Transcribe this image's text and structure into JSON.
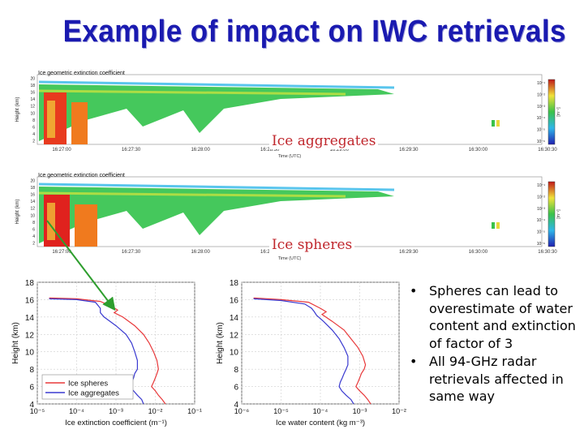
{
  "slide": {
    "title": "Example of impact on IWC retrievals",
    "bullets": [
      "Spheres can lead to overestimate of water content and extinction of factor of 3",
      "All 94-GHz radar retrievals affected in same way"
    ],
    "bullet_glyph": "•"
  },
  "panels": [
    {
      "caption": "Ice geometric extinction coefficient",
      "label": "Ice aggregates",
      "ylabel": "Height (km)",
      "xlabel": "Time (UTC)",
      "time_ticks": [
        "16:27:00",
        "16:27:30",
        "16:28:00",
        "16:28:30",
        "16:29:00",
        "16:29:30",
        "16:30:00",
        "16:30:30"
      ],
      "height_ticks": [
        "2",
        "4",
        "6",
        "8",
        "10",
        "12",
        "14",
        "16",
        "18",
        "20"
      ],
      "colorbar_ticks": [
        "10⁻¹",
        "10⁻²",
        "10⁻³",
        "10⁻⁴",
        "10⁻⁵",
        "10⁻⁶"
      ],
      "colorbar_unit": "[m⁻¹]"
    },
    {
      "caption": "Ice geometric extinction coefficient",
      "label": "Ice spheres",
      "ylabel": "Height (km)",
      "xlabel": "Time (UTC)",
      "time_ticks": [
        "16:27:00",
        "16:27:30",
        "16:28:00",
        "16:28:30",
        "16:29:00",
        "16:29:30",
        "16:30:00",
        "16:30:30"
      ],
      "height_ticks": [
        "2",
        "4",
        "6",
        "8",
        "10",
        "12",
        "14",
        "16",
        "18",
        "20"
      ],
      "colorbar_ticks": [
        "10⁻¹",
        "10⁻²",
        "10⁻³",
        "10⁻⁴",
        "10⁻⁵",
        "10⁻⁶"
      ],
      "colorbar_unit": "[m⁻¹]"
    }
  ],
  "colors": {
    "title": "#1a1ab0",
    "label": "#c0272d",
    "spheres": "#e8383a",
    "aggregates": "#3a3ad0",
    "arrow": "#2e9e2e"
  },
  "chart_data": [
    {
      "type": "line",
      "xscale": "log",
      "xlabel": "Ice extinction coefficient (m⁻¹)",
      "ylabel": "Height (km)",
      "xlim": [
        1e-05,
        0.1
      ],
      "ylim": [
        4,
        18
      ],
      "xticks": [
        1e-05,
        0.0001,
        0.001,
        0.01,
        0.1
      ],
      "xtick_labels": [
        "10⁻⁵",
        "10⁻⁴",
        "10⁻³",
        "10⁻²",
        "10⁻¹"
      ],
      "yticks": [
        4,
        6,
        8,
        10,
        12,
        14,
        16,
        18
      ],
      "grid": true,
      "legend": "bottom-left",
      "series": [
        {
          "name": "Ice spheres",
          "color": "#e8383a",
          "points": [
            [
              2e-05,
              16.2
            ],
            [
              0.0001,
              16.1
            ],
            [
              0.0004,
              15.8
            ],
            [
              0.0008,
              15.2
            ],
            [
              0.0011,
              14.8
            ],
            [
              0.0009,
              14.5
            ],
            [
              0.0015,
              14.0
            ],
            [
              0.003,
              13.0
            ],
            [
              0.005,
              12.0
            ],
            [
              0.007,
              11.0
            ],
            [
              0.009,
              10.0
            ],
            [
              0.011,
              9.0
            ],
            [
              0.012,
              8.0
            ],
            [
              0.011,
              7.5
            ],
            [
              0.01,
              7.0
            ],
            [
              0.009,
              6.5
            ],
            [
              0.008,
              6.0
            ],
            [
              0.01,
              5.5
            ],
            [
              0.012,
              5.0
            ],
            [
              0.015,
              4.5
            ],
            [
              0.018,
              4.0
            ]
          ]
        },
        {
          "name": "Ice aggregates",
          "color": "#3a3ad0",
          "points": [
            [
              2e-05,
              16.1
            ],
            [
              0.0001,
              16.0
            ],
            [
              0.0003,
              15.7
            ],
            [
              0.0004,
              15.0
            ],
            [
              0.0004,
              14.5
            ],
            [
              0.0005,
              14.0
            ],
            [
              0.001,
              13.0
            ],
            [
              0.0018,
              12.0
            ],
            [
              0.0025,
              11.0
            ],
            [
              0.003,
              10.0
            ],
            [
              0.0035,
              9.0
            ],
            [
              0.0035,
              8.0
            ],
            [
              0.003,
              7.5
            ],
            [
              0.0028,
              7.0
            ],
            [
              0.0025,
              6.5
            ],
            [
              0.0022,
              6.0
            ],
            [
              0.0028,
              5.5
            ],
            [
              0.0035,
              5.0
            ],
            [
              0.0045,
              4.5
            ],
            [
              0.005,
              4.0
            ]
          ]
        }
      ]
    },
    {
      "type": "line",
      "xscale": "log",
      "xlabel": "Ice water content (kg m⁻³)",
      "ylabel": "Height (km)",
      "xlim": [
        1e-06,
        0.01
      ],
      "ylim": [
        4,
        18
      ],
      "xticks": [
        1e-06,
        1e-05,
        0.0001,
        0.001,
        0.01
      ],
      "xtick_labels": [
        "10⁻⁶",
        "10⁻⁵",
        "10⁻⁴",
        "10⁻³",
        "10⁻²"
      ],
      "yticks": [
        4,
        6,
        8,
        10,
        12,
        14,
        16,
        18
      ],
      "grid": true,
      "legend": "none",
      "series": [
        {
          "name": "Ice spheres",
          "color": "#e8383a",
          "points": [
            [
              2e-06,
              16.2
            ],
            [
              1e-05,
              16.0
            ],
            [
              5e-05,
              15.7
            ],
            [
              0.0001,
              15.0
            ],
            [
              0.00014,
              14.6
            ],
            [
              0.00011,
              14.3
            ],
            [
              0.0002,
              13.5
            ],
            [
              0.0004,
              12.5
            ],
            [
              0.0006,
              11.5
            ],
            [
              0.0009,
              10.5
            ],
            [
              0.0012,
              9.5
            ],
            [
              0.0014,
              8.5
            ],
            [
              0.0013,
              8.0
            ],
            [
              0.0011,
              7.5
            ],
            [
              0.001,
              7.0
            ],
            [
              0.0009,
              6.5
            ],
            [
              0.0008,
              6.0
            ],
            [
              0.001,
              5.5
            ],
            [
              0.0013,
              5.0
            ],
            [
              0.0016,
              4.5
            ],
            [
              0.0019,
              4.0
            ]
          ]
        },
        {
          "name": "Ice aggregates",
          "color": "#3a3ad0",
          "points": [
            [
              2e-06,
              16.1
            ],
            [
              1e-05,
              15.9
            ],
            [
              4e-05,
              15.5
            ],
            [
              6e-05,
              15.0
            ],
            [
              7e-05,
              14.6
            ],
            [
              8e-05,
              14.2
            ],
            [
              0.00012,
              13.5
            ],
            [
              0.0002,
              12.5
            ],
            [
              0.0003,
              11.5
            ],
            [
              0.0004,
              10.5
            ],
            [
              0.0005,
              9.5
            ],
            [
              0.0005,
              8.5
            ],
            [
              0.00045,
              8.0
            ],
            [
              0.0004,
              7.5
            ],
            [
              0.00036,
              7.0
            ],
            [
              0.00032,
              6.5
            ],
            [
              0.0003,
              6.0
            ],
            [
              0.00035,
              5.5
            ],
            [
              0.00045,
              5.0
            ],
            [
              0.0006,
              4.5
            ],
            [
              0.0007,
              4.0
            ]
          ]
        }
      ]
    }
  ]
}
